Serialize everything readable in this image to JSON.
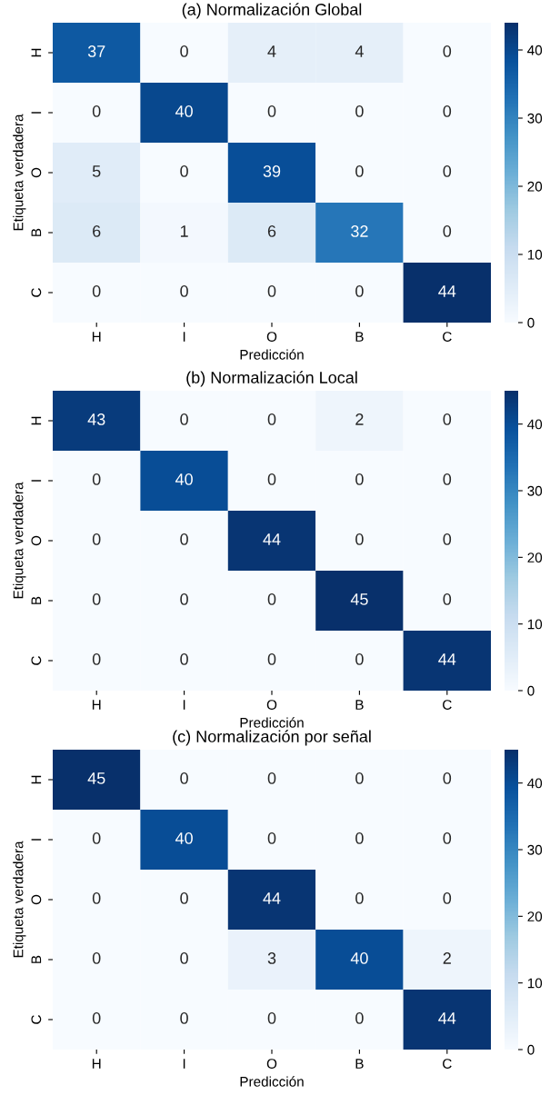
{
  "chart_data": [
    {
      "type": "heatmap",
      "title": "(a) Normalización Global",
      "xlabel": "Predicción",
      "ylabel": "Etiqueta verdadera",
      "categories": [
        "H",
        "I",
        "O",
        "B",
        "C"
      ],
      "y_categories": [
        "H",
        "I",
        "O",
        "B",
        "C"
      ],
      "data_labels": true,
      "cells": [
        [
          37,
          0,
          4,
          4,
          0
        ],
        [
          0,
          40,
          0,
          0,
          0
        ],
        [
          5,
          0,
          39,
          0,
          0
        ],
        [
          6,
          1,
          6,
          32,
          0
        ],
        [
          0,
          0,
          0,
          0,
          44
        ]
      ],
      "clim": [
        0,
        44
      ],
      "cticks": [
        0,
        10,
        20,
        30,
        40
      ]
    },
    {
      "type": "heatmap",
      "title": "(b) Normalización Local",
      "xlabel": "Predicción",
      "ylabel": "Etiqueta verdadera",
      "categories": [
        "H",
        "I",
        "O",
        "B",
        "C"
      ],
      "y_categories": [
        "H",
        "I",
        "O",
        "B",
        "C"
      ],
      "data_labels": true,
      "cells": [
        [
          43,
          0,
          0,
          2,
          0
        ],
        [
          0,
          40,
          0,
          0,
          0
        ],
        [
          0,
          0,
          44,
          0,
          0
        ],
        [
          0,
          0,
          0,
          45,
          0
        ],
        [
          0,
          0,
          0,
          0,
          44
        ]
      ],
      "clim": [
        0,
        45
      ],
      "cticks": [
        0,
        10,
        20,
        30,
        40
      ]
    },
    {
      "type": "heatmap",
      "title": "(c) Normalización por señal",
      "xlabel": "Predicción",
      "ylabel": "Etiqueta verdadera",
      "categories": [
        "H",
        "I",
        "O",
        "B",
        "C"
      ],
      "y_categories": [
        "H",
        "I",
        "O",
        "B",
        "C"
      ],
      "data_labels": true,
      "cells": [
        [
          45,
          0,
          0,
          0,
          0
        ],
        [
          0,
          40,
          0,
          0,
          0
        ],
        [
          0,
          0,
          44,
          0,
          0
        ],
        [
          0,
          0,
          3,
          40,
          2
        ],
        [
          0,
          0,
          0,
          0,
          44
        ]
      ],
      "clim": [
        0,
        45
      ],
      "cticks": [
        0,
        10,
        20,
        30,
        40
      ]
    }
  ]
}
